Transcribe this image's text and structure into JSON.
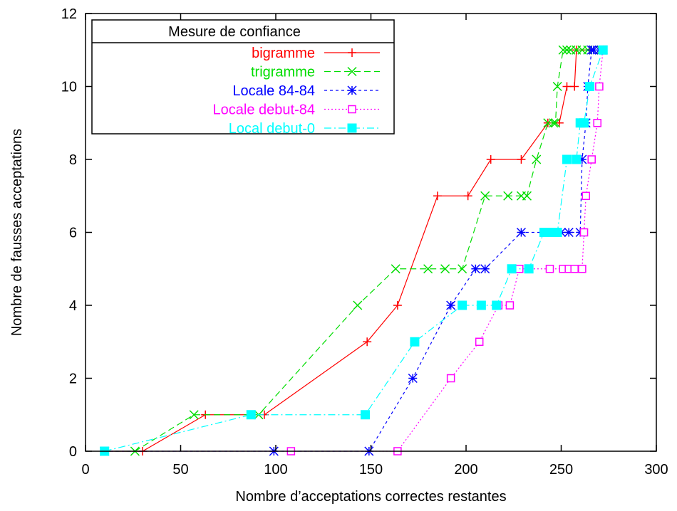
{
  "chart_data": {
    "type": "line",
    "title": "",
    "xlabel": "Nombre d’acceptations correctes restantes",
    "ylabel": "Nombre de fausses acceptations",
    "xlim": [
      0,
      300
    ],
    "ylim": [
      0,
      12
    ],
    "xticks": [
      "0",
      "50",
      "100",
      "150",
      "200",
      "250",
      "300"
    ],
    "yticks": [
      "0",
      "2",
      "4",
      "6",
      "8",
      "10",
      "12"
    ],
    "grid": false,
    "legend": {
      "title": "Mesure de confiance",
      "placement": "top-left"
    },
    "series": [
      {
        "name": "bigramme",
        "color": "#ff0000",
        "marker": "plus",
        "dash": "solid",
        "points": [
          [
            10,
            0
          ],
          [
            30,
            0
          ],
          [
            63,
            1
          ],
          [
            94,
            1
          ],
          [
            148,
            3
          ],
          [
            164,
            4
          ],
          [
            185,
            7
          ],
          [
            201,
            7
          ],
          [
            213,
            8
          ],
          [
            229,
            8
          ],
          [
            243,
            9
          ],
          [
            249,
            9
          ],
          [
            253,
            10
          ],
          [
            257,
            10
          ],
          [
            258,
            11
          ],
          [
            265,
            11
          ],
          [
            271,
            11
          ]
        ]
      },
      {
        "name": "trigramme",
        "color": "#00dd00",
        "marker": "x",
        "dash": "dashed",
        "points": [
          [
            10,
            0
          ],
          [
            26,
            0
          ],
          [
            57,
            1
          ],
          [
            91,
            1
          ],
          [
            143,
            4
          ],
          [
            163,
            5
          ],
          [
            180,
            5
          ],
          [
            189,
            5
          ],
          [
            198,
            5
          ],
          [
            210,
            7
          ],
          [
            222,
            7
          ],
          [
            229,
            7
          ],
          [
            232,
            7
          ],
          [
            237,
            8
          ],
          [
            243,
            9
          ],
          [
            246,
            9
          ],
          [
            247,
            9
          ],
          [
            248,
            10
          ],
          [
            251,
            11
          ],
          [
            253,
            11
          ],
          [
            255,
            11
          ],
          [
            258,
            11
          ],
          [
            261,
            11
          ],
          [
            264,
            11
          ],
          [
            267,
            11
          ],
          [
            271,
            11
          ]
        ]
      },
      {
        "name": "Locale 84-84",
        "color": "#0000ff",
        "marker": "asterisk",
        "dash": "short-dashed",
        "points": [
          [
            10,
            0
          ],
          [
            99,
            0
          ],
          [
            149,
            0
          ],
          [
            172,
            2
          ],
          [
            192,
            4
          ],
          [
            205,
            5
          ],
          [
            210,
            5
          ],
          [
            229,
            6
          ],
          [
            250,
            6
          ],
          [
            254,
            6
          ],
          [
            260,
            6
          ],
          [
            261,
            8
          ],
          [
            263,
            9
          ],
          [
            264,
            10
          ],
          [
            266,
            11
          ],
          [
            267,
            11
          ],
          [
            270,
            11
          ],
          [
            272,
            11
          ]
        ]
      },
      {
        "name": "Locale debut-84",
        "color": "#ff00ff",
        "marker": "open-square",
        "dash": "dotted",
        "points": [
          [
            10,
            0
          ],
          [
            108,
            0
          ],
          [
            164,
            0
          ],
          [
            192,
            2
          ],
          [
            207,
            3
          ],
          [
            217,
            4
          ],
          [
            223,
            4
          ],
          [
            228,
            5
          ],
          [
            244,
            5
          ],
          [
            251,
            5
          ],
          [
            254,
            5
          ],
          [
            257,
            5
          ],
          [
            261,
            5
          ],
          [
            262,
            6
          ],
          [
            263,
            7
          ],
          [
            266,
            8
          ],
          [
            269,
            9
          ],
          [
            270,
            10
          ],
          [
            272,
            11
          ]
        ]
      },
      {
        "name": "Local debut-0",
        "color": "#00ffff",
        "marker": "filled-square",
        "dash": "dash-dot",
        "points": [
          [
            10,
            0
          ],
          [
            87,
            1
          ],
          [
            147,
            1
          ],
          [
            173,
            3
          ],
          [
            198,
            4
          ],
          [
            208,
            4
          ],
          [
            216,
            4
          ],
          [
            224,
            5
          ],
          [
            233,
            5
          ],
          [
            241,
            6
          ],
          [
            245,
            6
          ],
          [
            248,
            6
          ],
          [
            253,
            8
          ],
          [
            258,
            8
          ],
          [
            260,
            9
          ],
          [
            262,
            9
          ],
          [
            265,
            10
          ],
          [
            272,
            11
          ]
        ]
      }
    ]
  }
}
